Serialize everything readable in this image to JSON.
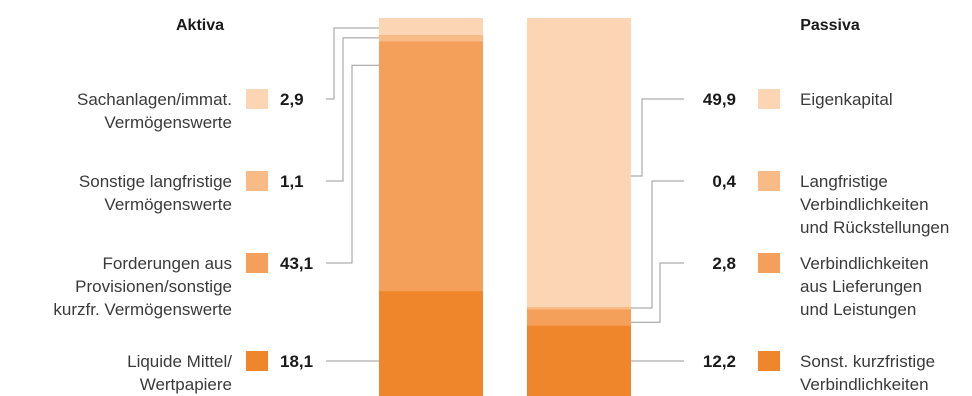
{
  "colors": {
    "lightest": "#fcd6b4",
    "light": "#f8bb86",
    "medium": "#f5a05a",
    "dark": "#f0862b"
  },
  "chart_data": {
    "type": "bar",
    "stacked": true,
    "unit": "%",
    "categories": [
      "Aktiva",
      "Passiva"
    ],
    "aktiva": {
      "title": "Aktiva",
      "segments": [
        {
          "label": [
            "Sachanlagen/immat.",
            "Vermögenswerte"
          ],
          "value": 2.9,
          "value_label": "2,9",
          "color": "#fcd6b4"
        },
        {
          "label": [
            "Sonstige langfristige",
            "Vermögenswerte"
          ],
          "value": 1.1,
          "value_label": "1,1",
          "color": "#f8bb86"
        },
        {
          "label": [
            "Forderungen aus",
            "Provisionen/sonstige",
            "kurzfr. Vermögenswerte"
          ],
          "value": 43.1,
          "value_label": "43,1",
          "color": "#f5a05a"
        },
        {
          "label": [
            "Liquide Mittel/",
            "Wertpapiere"
          ],
          "value": 18.1,
          "value_label": "18,1",
          "color": "#f0862b"
        }
      ]
    },
    "passiva": {
      "title": "Passiva",
      "segments": [
        {
          "label": [
            "Eigenkapital"
          ],
          "value": 49.9,
          "value_label": "49,9",
          "color": "#fcd6b4"
        },
        {
          "label": [
            "Langfristige",
            "Verbindlichkeiten",
            "und Rückstellungen"
          ],
          "value": 0.4,
          "value_label": "0,4",
          "color": "#f8bb86"
        },
        {
          "label": [
            "Verbindlichkeiten",
            "aus Lieferungen",
            "und Leistungen"
          ],
          "value": 2.8,
          "value_label": "2,8",
          "color": "#f5a05a"
        },
        {
          "label": [
            "Sonst. kurzfristige",
            "Verbindlichkeiten"
          ],
          "value": 12.2,
          "value_label": "12,2",
          "color": "#f0862b"
        }
      ]
    }
  }
}
